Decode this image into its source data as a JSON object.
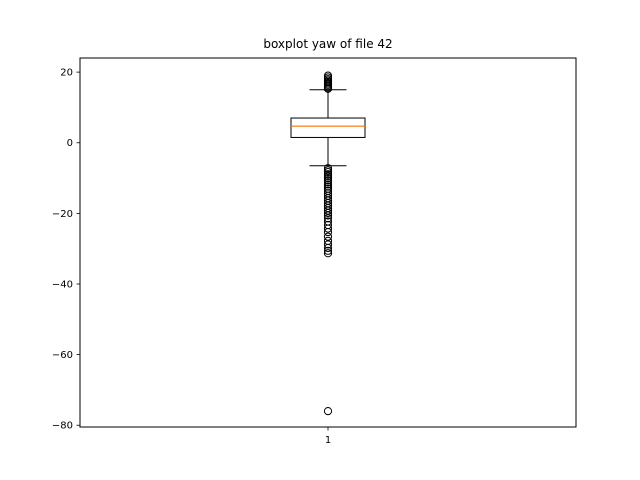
{
  "chart_data": {
    "type": "boxplot",
    "title": "boxplot yaw of file 42",
    "xlabel": "",
    "ylabel": "",
    "categories": [
      "1"
    ],
    "ylim": [
      -80.5,
      24
    ],
    "yticks": [
      20,
      0,
      -20,
      -40,
      -60,
      -80
    ],
    "ytick_labels": [
      "20",
      "0",
      "−20",
      "−40",
      "−60",
      "−80"
    ],
    "grid": false,
    "boxes": [
      {
        "category": "1",
        "whisker_low": -6.5,
        "q1": 1.5,
        "median": 4.7,
        "q3": 7.0,
        "whisker_high": 15.0,
        "outliers": [
          19.0,
          18.5,
          18.0,
          17.6,
          17.2,
          16.8,
          16.4,
          16.0,
          15.6,
          15.3,
          -7.2,
          -7.8,
          -8.3,
          -8.9,
          -9.4,
          -10.0,
          -10.6,
          -11.2,
          -11.8,
          -12.4,
          -13.0,
          -13.6,
          -14.3,
          -15.0,
          -15.7,
          -16.4,
          -17.1,
          -17.8,
          -18.5,
          -19.2,
          -19.9,
          -20.6,
          -21.4,
          -22.3,
          -23.3,
          -24.3,
          -25.3,
          -26.6,
          -27.8,
          -28.8,
          -29.8,
          -30.6,
          -31.3,
          -76.0
        ]
      }
    ],
    "colors": {
      "median": "#ff7f0e",
      "box": "#000000",
      "outlier": "#000000"
    }
  }
}
